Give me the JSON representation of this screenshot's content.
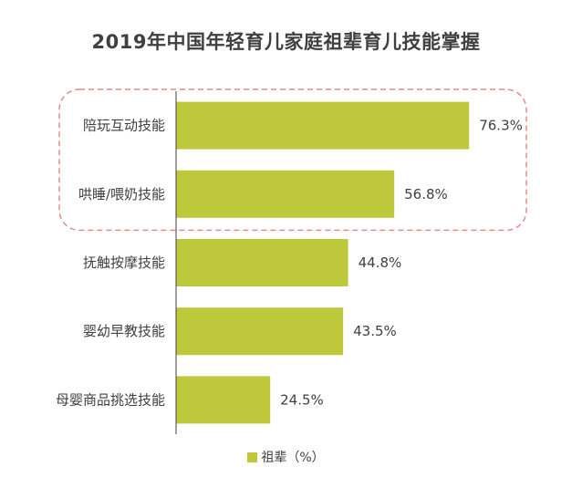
{
  "chart_data": {
    "type": "bar",
    "orientation": "horizontal",
    "title": "2019年中国年轻育儿家庭祖辈育儿技能掌握",
    "categories": [
      "陪玩互动技能",
      "哄睡/喂奶技能",
      "抚触按摩技能",
      "婴幼早教技能",
      "母婴商品挑选技能"
    ],
    "series": [
      {
        "name": "祖辈（%）",
        "values": [
          76.3,
          56.8,
          44.8,
          43.5,
          24.5
        ],
        "color": "#bdc93a"
      }
    ],
    "value_labels": [
      "76.3%",
      "56.8%",
      "44.8%",
      "43.5%",
      "24.5%"
    ],
    "xlim": [
      0,
      100
    ],
    "grid": false,
    "legend_position": "bottom",
    "highlight": {
      "categories": [
        "陪玩互动技能",
        "哄睡/喂奶技能"
      ],
      "style": "dashed-rounded-box",
      "color": "#e58a8a"
    },
    "axis_color": "#404040"
  },
  "legend": {
    "label": "祖辈（%）"
  }
}
